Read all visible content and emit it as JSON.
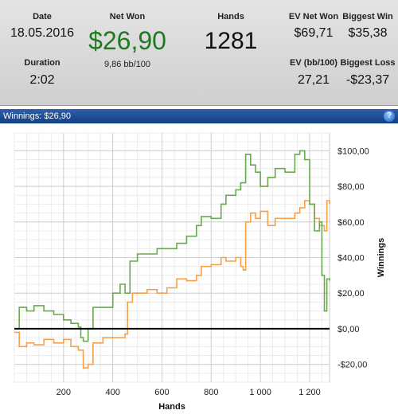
{
  "stats": {
    "date_label": "Date",
    "date_value": "18.05.2016",
    "duration_label": "Duration",
    "duration_value": "2:02",
    "net_won_label": "Net Won",
    "net_won_value": "$26,90",
    "net_won_rate": "9,86 bb/100",
    "hands_label": "Hands",
    "hands_value": "1281",
    "ev_net_won_label": "EV Net Won",
    "ev_net_won_value": "$69,71",
    "ev_bb_label": "EV (bb/100)",
    "ev_bb_value": "27,21",
    "biggest_win_label": "Biggest Win",
    "biggest_win_value": "$35,38",
    "biggest_loss_label": "Biggest Loss",
    "biggest_loss_value": "-$23,37",
    "net_won_color": "#1e7a1e"
  },
  "panel": {
    "title": "Winnings: $26,90",
    "help_glyph": "?"
  },
  "chart_data": {
    "type": "line",
    "xlabel": "Hands",
    "ylabel": "Winnings",
    "xlim": [
      0,
      1281
    ],
    "ylim": [
      -30,
      110
    ],
    "x_ticks": [
      200,
      400,
      600,
      800,
      1000,
      1200
    ],
    "x_tick_labels": [
      "200",
      "400",
      "600",
      "800",
      "1 000",
      "1 200"
    ],
    "y_ticks": [
      -20,
      0,
      20,
      40,
      60,
      80,
      100
    ],
    "y_tick_labels": [
      "-$20,00",
      "$0,00",
      "$20,00",
      "$40,00",
      "$60,00",
      "$80,00",
      "$100,00"
    ],
    "grid": true,
    "zero_line": true,
    "series": [
      {
        "color": "#f5a04a",
        "x": [
          0,
          20,
          50,
          80,
          120,
          160,
          200,
          230,
          260,
          280,
          300,
          320,
          360,
          400,
          430,
          450,
          460,
          480,
          500,
          540,
          580,
          620,
          660,
          700,
          740,
          760,
          800,
          840,
          860,
          900,
          920,
          930,
          940,
          960,
          980,
          1000,
          1030,
          1060,
          1100,
          1140,
          1160,
          1180,
          1200,
          1220,
          1240,
          1260,
          1270,
          1281
        ],
        "y": [
          -2,
          -10,
          -8,
          -9,
          -6,
          -8,
          -6,
          -10,
          -12,
          -22,
          -20,
          -8,
          -5,
          -5,
          -5,
          -3,
          15,
          20,
          20,
          22,
          20,
          23,
          28,
          27,
          30,
          35,
          36,
          40,
          38,
          40,
          35,
          33,
          60,
          65,
          62,
          66,
          58,
          62,
          62,
          65,
          68,
          72,
          70,
          62,
          58,
          55,
          72,
          70
        ]
      },
      {
        "color": "#6aa84f",
        "x": [
          0,
          20,
          50,
          80,
          120,
          160,
          200,
          230,
          260,
          270,
          280,
          300,
          320,
          360,
          400,
          430,
          450,
          470,
          500,
          540,
          580,
          620,
          660,
          700,
          740,
          760,
          800,
          840,
          860,
          900,
          920,
          940,
          960,
          980,
          1000,
          1030,
          1060,
          1100,
          1140,
          1160,
          1180,
          1200,
          1220,
          1240,
          1250,
          1260,
          1270,
          1281
        ],
        "y": [
          0,
          12,
          10,
          13,
          10,
          8,
          5,
          3,
          1,
          -5,
          -7,
          0,
          12,
          12,
          20,
          25,
          20,
          38,
          42,
          42,
          45,
          45,
          48,
          52,
          58,
          63,
          62,
          70,
          75,
          78,
          82,
          98,
          92,
          88,
          80,
          85,
          90,
          88,
          98,
          100,
          95,
          70,
          55,
          60,
          30,
          10,
          28,
          27
        ]
      }
    ]
  }
}
